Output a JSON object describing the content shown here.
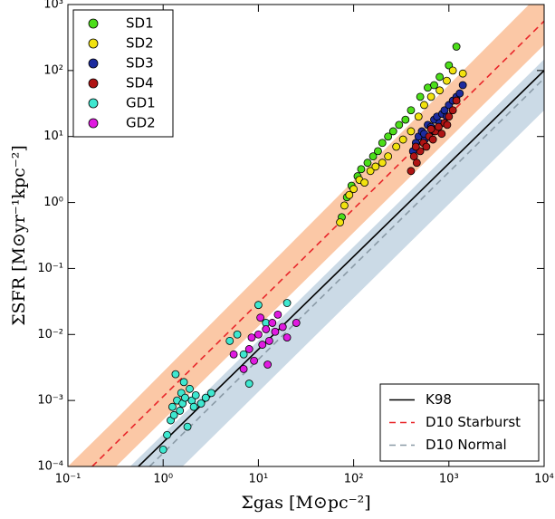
{
  "chart_data": {
    "type": "scatter",
    "x_label": "Σgas [M⊙pc⁻²]",
    "y_label": "ΣSFR [M⊙yr⁻¹kpc⁻²]",
    "log_x": true,
    "log_y": true,
    "xlim": [
      0.1,
      10000
    ],
    "ylim": [
      0.0001,
      1000
    ],
    "xticks": [
      {
        "value": 0.1,
        "label": "10⁻¹"
      },
      {
        "value": 1,
        "label": "10⁰"
      },
      {
        "value": 10,
        "label": "10¹"
      },
      {
        "value": 100,
        "label": "10²"
      },
      {
        "value": 1000,
        "label": "10³"
      },
      {
        "value": 10000,
        "label": "10⁴"
      }
    ],
    "yticks": [
      {
        "value": 0.0001,
        "label": "10⁻⁴"
      },
      {
        "value": 0.001,
        "label": "10⁻³"
      },
      {
        "value": 0.01,
        "label": "10⁻²"
      },
      {
        "value": 0.1,
        "label": "10⁻¹"
      },
      {
        "value": 1,
        "label": "10⁰"
      },
      {
        "value": 10,
        "label": "10¹"
      },
      {
        "value": 100,
        "label": "10²"
      },
      {
        "value": 1000,
        "label": "10³"
      }
    ],
    "legend_loc": "upper left",
    "line_legend_loc": "lower right",
    "bands": [
      {
        "color": "#f9a36b",
        "x": [
          0.1,
          0.32,
          10000
        ],
        "upper": [
          0.0001,
          0.00052,
          1700
        ],
        "lower": [
          1.92e-05,
          0.0001,
          245
        ]
      },
      {
        "color": "#a8c2d6",
        "x": [
          0.45,
          1.6,
          10000
        ],
        "upper": [
          0.0001,
          0.0006,
          148
        ],
        "lower": [
          1.65e-05,
          0.0001,
          25
        ]
      }
    ],
    "lines": [
      {
        "name": "K98",
        "color": "#000000",
        "dash": "none",
        "x": [
          0.55,
          10000
        ],
        "values": [
          0.0001,
          100
        ]
      },
      {
        "name": "D10 Starburst",
        "color": "#e8262a",
        "dash": "7 5",
        "x": [
          0.18,
          10000
        ],
        "values": [
          0.0001,
          560
        ]
      },
      {
        "name": "D10 Normal",
        "color": "#8a9aa6",
        "dash": "7 5",
        "x": [
          0.72,
          10000
        ],
        "values": [
          0.0001,
          76
        ]
      }
    ],
    "series": [
      {
        "name": "SD1",
        "color": "#4cde1a",
        "x": [
          75,
          85,
          95,
          110,
          120,
          140,
          160,
          180,
          200,
          230,
          260,
          300,
          350,
          400,
          500,
          600,
          700,
          800,
          1000,
          1200
        ],
        "values": [
          0.6,
          1.2,
          1.8,
          2.5,
          3.2,
          4,
          5,
          6,
          8,
          10,
          12,
          15,
          18,
          25,
          40,
          55,
          60,
          80,
          120,
          230
        ]
      },
      {
        "name": "SD2",
        "color": "#f2e20f",
        "x": [
          72,
          80,
          90,
          100,
          115,
          130,
          150,
          170,
          200,
          230,
          280,
          330,
          400,
          480,
          550,
          650,
          800,
          950,
          1100,
          1400
        ],
        "values": [
          0.5,
          0.9,
          1.3,
          1.6,
          2.2,
          2,
          3,
          3.5,
          4,
          5,
          7,
          9,
          12,
          20,
          30,
          40,
          50,
          70,
          100,
          90
        ]
      },
      {
        "name": "SD3",
        "color": "#1c2b9e",
        "x": [
          420,
          450,
          480,
          520,
          560,
          600,
          650,
          700,
          750,
          800,
          850,
          900,
          950,
          1000,
          1100,
          1200,
          1300,
          1400,
          550,
          700
        ],
        "values": [
          6,
          8,
          10,
          12,
          9,
          15,
          14,
          18,
          20,
          16,
          22,
          25,
          20,
          30,
          35,
          40,
          45,
          60,
          11,
          12
        ]
      },
      {
        "name": "SD4",
        "color": "#b01414",
        "x": [
          400,
          430,
          460,
          500,
          540,
          580,
          620,
          680,
          720,
          780,
          840,
          900,
          960,
          1000,
          1100,
          1200,
          450,
          650
        ],
        "values": [
          3,
          5,
          4,
          6,
          8,
          7,
          10,
          9,
          12,
          14,
          11,
          16,
          15,
          20,
          25,
          35,
          7,
          13
        ]
      },
      {
        "name": "GD1",
        "color": "#3ee8d0",
        "x": [
          1.0,
          1.1,
          1.2,
          1.25,
          1.3,
          1.4,
          1.5,
          1.55,
          1.6,
          1.7,
          1.8,
          1.9,
          2.0,
          2.2,
          2.5,
          2.8,
          3.2,
          1.35,
          1.65,
          2.1,
          5.0,
          6.0,
          7.0,
          8.0,
          10,
          12,
          20
        ],
        "values": [
          0.00018,
          0.0003,
          0.0005,
          0.0008,
          0.0006,
          0.001,
          0.0007,
          0.0013,
          0.0009,
          0.0011,
          0.0004,
          0.0015,
          0.001,
          0.0012,
          0.0009,
          0.0011,
          0.0013,
          0.0025,
          0.0019,
          0.0008,
          0.008,
          0.01,
          0.005,
          0.0018,
          0.028,
          0.015,
          0.03
        ]
      },
      {
        "name": "GD2",
        "color": "#e01ae0",
        "x": [
          5.5,
          7,
          8,
          8.5,
          9,
          10,
          11,
          12,
          13,
          14,
          15,
          16,
          18,
          20,
          25,
          10.5,
          12.5
        ],
        "values": [
          0.005,
          0.003,
          0.006,
          0.009,
          0.004,
          0.01,
          0.007,
          0.012,
          0.008,
          0.015,
          0.011,
          0.02,
          0.013,
          0.009,
          0.015,
          0.018,
          0.0035
        ]
      }
    ]
  }
}
